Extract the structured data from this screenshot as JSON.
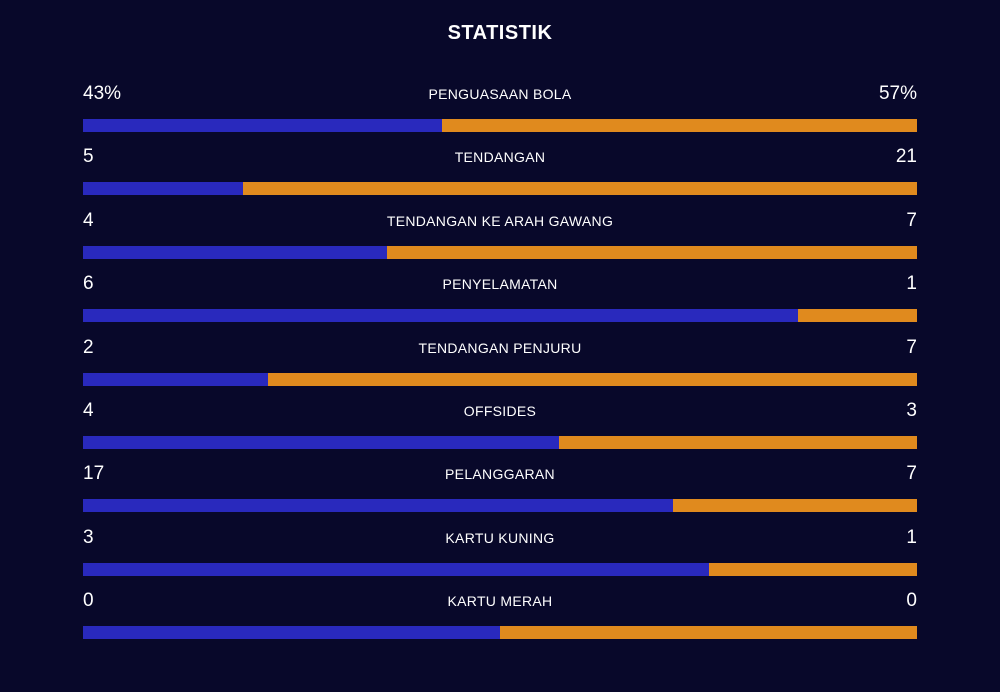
{
  "header": {
    "title": "STATISTIK"
  },
  "colors": {
    "background": "#08082a",
    "home": "#2929bd",
    "away": "#e08a1e",
    "text": "#ffffff"
  },
  "stats": [
    {
      "label": "PENGUASAAN BOLA",
      "left": "43%",
      "right": "57%",
      "left_share": 0.43
    },
    {
      "label": "TENDANGAN",
      "left": "5",
      "right": "21",
      "left_share": 0.192
    },
    {
      "label": "TENDANGAN KE ARAH GAWANG",
      "left": "4",
      "right": "7",
      "left_share": 0.364
    },
    {
      "label": "PENYELAMATAN",
      "left": "6",
      "right": "1",
      "left_share": 0.857
    },
    {
      "label": "TENDANGAN PENJURU",
      "left": "2",
      "right": "7",
      "left_share": 0.222
    },
    {
      "label": "OFFSIDES",
      "left": "4",
      "right": "3",
      "left_share": 0.571
    },
    {
      "label": "PELANGGARAN",
      "left": "17",
      "right": "7",
      "left_share": 0.708
    },
    {
      "label": "KARTU KUNING",
      "left": "3",
      "right": "1",
      "left_share": 0.75
    },
    {
      "label": "KARTU MERAH",
      "left": "0",
      "right": "0",
      "left_share": 0.5
    }
  ]
}
